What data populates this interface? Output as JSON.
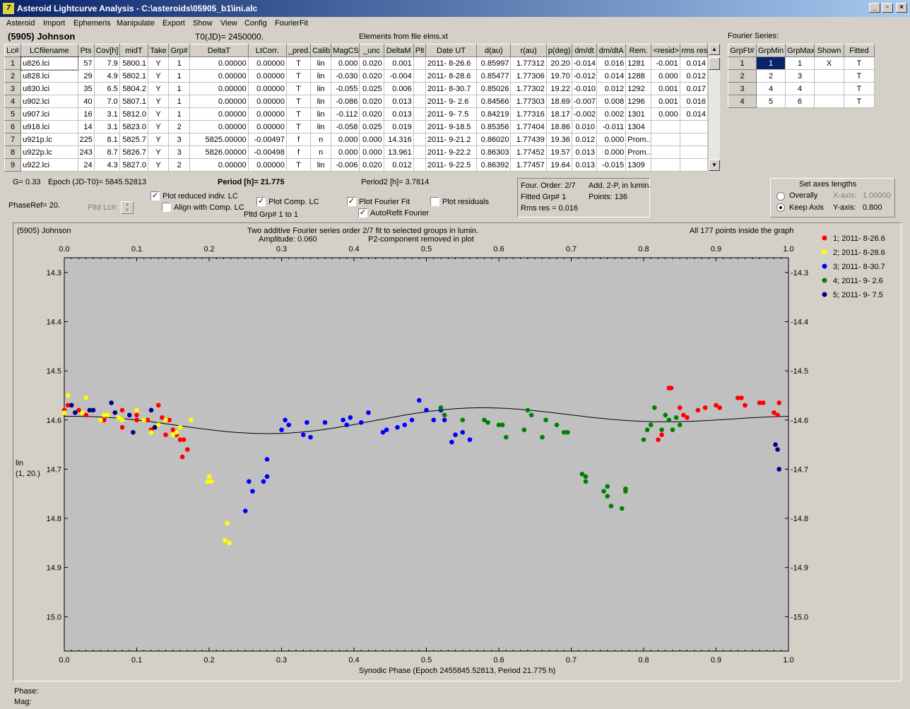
{
  "window": {
    "title": "Asteroid Lightcurve Analysis - C:\\asteroids\\05905_b1\\ini.alc",
    "controls": [
      "_",
      "▫",
      "×"
    ]
  },
  "menu": [
    "Asteroid",
    "Import",
    "Ephemeris",
    "Manipulate",
    "Export",
    "Show",
    "View",
    "Config",
    "FourierFit"
  ],
  "header": {
    "asteroid": "(5905) Johnson",
    "t0": "T0(JD)= 2450000.",
    "elements": "Elements from file elms.xt"
  },
  "lc_table": {
    "columns": [
      "Lc#",
      "LCfilename",
      "Pts",
      "Cov[h]",
      "midT",
      "Take",
      "Grp#",
      "DeltaT",
      "LtCorr.",
      "_pred.",
      "Calib.",
      "MagCS",
      "_unc",
      "DeltaM",
      "Plt",
      "Date UT",
      "d(au)",
      "r(au)",
      "p(deg)",
      "dm/dt",
      "dm/dtA",
      "Rem.",
      "<resid>",
      "rms res"
    ],
    "rows": [
      [
        "1",
        "u826.lci",
        "57",
        "7.9",
        "5800.1",
        "Y",
        "1",
        "0.00000",
        "0.00000",
        "T",
        "lin",
        "0.000",
        "0.020",
        "0.001",
        "",
        "2011- 8-26.6",
        "0.85997",
        "1.77312",
        "20.20",
        "-0.014",
        "0.016",
        "1281",
        "-0.001",
        "0.014"
      ],
      [
        "2",
        "u828.lci",
        "29",
        "4.9",
        "5802.1",
        "Y",
        "1",
        "0.00000",
        "0.00000",
        "T",
        "lin",
        "-0.030",
        "0.020",
        "-0.004",
        "",
        "2011- 8-28.6",
        "0.85477",
        "1.77306",
        "19.70",
        "-0.012",
        "0.014",
        "1288",
        "0.000",
        "0.012"
      ],
      [
        "3",
        "u830.lci",
        "35",
        "6.5",
        "5804.2",
        "Y",
        "1",
        "0.00000",
        "0.00000",
        "T",
        "lin",
        "-0.055",
        "0.025",
        "0.006",
        "",
        "2011- 8-30.7",
        "0.85026",
        "1.77302",
        "19.22",
        "-0.010",
        "0.012",
        "1292",
        "0.001",
        "0.017"
      ],
      [
        "4",
        "u902.lci",
        "40",
        "7.0",
        "5807.1",
        "Y",
        "1",
        "0.00000",
        "0.00000",
        "T",
        "lin",
        "-0.086",
        "0.020",
        "0.013",
        "",
        "2011- 9- 2.6",
        "0.84566",
        "1.77303",
        "18.69",
        "-0.007",
        "0.008",
        "1296",
        "0.001",
        "0.016"
      ],
      [
        "5",
        "u907.lci",
        "16",
        "3.1",
        "5812.0",
        "Y",
        "1",
        "0.00000",
        "0.00000",
        "T",
        "lin",
        "-0.112",
        "0.020",
        "0.013",
        "",
        "2011- 9- 7.5",
        "0.84219",
        "1.77316",
        "18.17",
        "-0.002",
        "0.002",
        "1301",
        "0.000",
        "0.014"
      ],
      [
        "6",
        "u918.lci",
        "14",
        "3.1",
        "5823.0",
        "Y",
        "2",
        "0.00000",
        "0.00000",
        "T",
        "lin",
        "-0.058",
        "0.025",
        "0.019",
        "",
        "2011- 9-18.5",
        "0.85356",
        "1.77404",
        "18.86",
        "0.010",
        "-0.011",
        "1304",
        "",
        ""
      ],
      [
        "7",
        "u921p.lc",
        "225",
        "8.1",
        "5825.7",
        "Y",
        "3",
        "5825.00000",
        "-0.00497",
        "f",
        "n",
        "0.000",
        "0.000",
        "14.316",
        "",
        "2011- 9-21.2",
        "0.86020",
        "1.77439",
        "19.36",
        "0.012",
        "0.000",
        "Prom...",
        "",
        ""
      ],
      [
        "8",
        "u922p.lc",
        "243",
        "8.7",
        "5826.7",
        "Y",
        "3",
        "5826.00000",
        "-0.00498",
        "f",
        "n",
        "0.000",
        "0.000",
        "13.961",
        "",
        "2011- 9-22.2",
        "0.86303",
        "1.77452",
        "19.57",
        "0.013",
        "0.000",
        "Prom...",
        "",
        ""
      ],
      [
        "9",
        "u922.lci",
        "24",
        "4.3",
        "5827.0",
        "Y",
        "2",
        "0.00000",
        "0.00000",
        "T",
        "lin",
        "-0.006",
        "0.020",
        "0.012",
        "",
        "2011- 9-22.5",
        "0.86392",
        "1.77457",
        "19.64",
        "0.013",
        "-0.015",
        "1309",
        "",
        ""
      ]
    ]
  },
  "fourier_series": {
    "title": "Fourier Series:",
    "columns": [
      "GrpFt#",
      "GrpMin",
      "GrpMax",
      "Shown",
      "Fitted"
    ],
    "rows": [
      [
        "1",
        "1",
        "1",
        "X",
        "T"
      ],
      [
        "2",
        "2",
        "3",
        "",
        "T"
      ],
      [
        "3",
        "4",
        "4",
        "",
        "T"
      ],
      [
        "4",
        "5",
        "6",
        "",
        "T"
      ]
    ]
  },
  "controls": {
    "g": "G= 0.33",
    "epoch": "Epoch (JD-T0)= 5845.52813",
    "period": "Period [h]= 21.775",
    "period2": "Period2 [h]= 3.7814",
    "phase_ref": "PhaseRef= 20.",
    "pltd_lc": "Pltd Lc#:",
    "plot_reduced": "Plot reduced indiv. LC",
    "align": "Align with Comp. LC",
    "plot_comp": "Plot Comp. LC",
    "pltd_grp": "Pltd Grp#  1   to   1",
    "plot_fourier": "Plot Fourier Fit",
    "autorefit": "AutoRefit Fourier",
    "plot_residuals": "Plot residuals",
    "checks": {
      "plot_reduced": "✓",
      "align": "",
      "plot_comp": "✓",
      "plot_fourier": "✓",
      "autorefit": "✓",
      "plot_residuals": ""
    }
  },
  "fit_info": {
    "order": "Four. Order:  2/7",
    "add": "Add. 2-P, in lumin.",
    "fitted": "Fitted Grp# 1",
    "points": "Points: 136",
    "rms": "Rms res     = 0.016"
  },
  "axes": {
    "title": "Set axes lengths",
    "overally": "Overally",
    "keep": "Keep Axis",
    "xaxis_label": "X-axis:",
    "xaxis_val": "1.00000",
    "yaxis_label": "Y-axis:",
    "yaxis_val": "0.800"
  },
  "chart_header": {
    "name": "(5905) Johnson",
    "line1": "Two additive Fourier series order 2/7 fit to selected groups in lumin.",
    "line2a": "Amplitude: 0.060",
    "line2b": "P2-component removed in plot",
    "points_info": "All 177 points inside the graph",
    "ylabel1": "lin",
    "ylabel2": "(1, 20.)",
    "xlabel": "Synodic Phase (Epoch 2455845.52813, Period 21.775 h)"
  },
  "status": {
    "phase": "Phase:",
    "mag": "Mag:"
  },
  "chart_data": {
    "type": "scatter",
    "xlabel": "Synodic Phase (Epoch 2455845.52813, Period 21.775 h)",
    "ylabel": "lin (1, 20.)",
    "xlim": [
      0,
      1
    ],
    "ylim": [
      15.07,
      14.27
    ],
    "y_inverted": true,
    "xticks": [
      "0.0",
      "0.1",
      "0.2",
      "0.3",
      "0.4",
      "0.5",
      "0.6",
      "0.7",
      "0.8",
      "0.9",
      "1.0"
    ],
    "yticks": [
      "14.3",
      "14.4",
      "14.5",
      "14.6",
      "14.7",
      "14.8",
      "14.9",
      "15.0"
    ],
    "legend_position": "right",
    "series": [
      {
        "name": "1; 2011- 8-26.6",
        "color": "#ff0000",
        "points": [
          [
            0.0,
            14.58
          ],
          [
            0.005,
            14.57
          ],
          [
            0.02,
            14.58
          ],
          [
            0.03,
            14.59
          ],
          [
            0.05,
            14.6
          ],
          [
            0.055,
            14.6
          ],
          [
            0.08,
            14.58
          ],
          [
            0.08,
            14.615
          ],
          [
            0.1,
            14.6
          ],
          [
            0.1,
            14.59
          ],
          [
            0.11,
            14.6
          ],
          [
            0.115,
            14.6
          ],
          [
            0.12,
            14.62
          ],
          [
            0.125,
            14.615
          ],
          [
            0.13,
            14.57
          ],
          [
            0.135,
            14.595
          ],
          [
            0.14,
            14.63
          ],
          [
            0.145,
            14.6
          ],
          [
            0.15,
            14.62
          ],
          [
            0.155,
            14.63
          ],
          [
            0.16,
            14.64
          ],
          [
            0.163,
            14.675
          ],
          [
            0.165,
            14.64
          ],
          [
            0.17,
            14.66
          ],
          [
            0.82,
            14.64
          ],
          [
            0.825,
            14.63
          ],
          [
            0.835,
            14.535
          ],
          [
            0.838,
            14.535
          ],
          [
            0.85,
            14.575
          ],
          [
            0.855,
            14.59
          ],
          [
            0.86,
            14.595
          ],
          [
            0.875,
            14.58
          ],
          [
            0.885,
            14.575
          ],
          [
            0.9,
            14.57
          ],
          [
            0.905,
            14.575
          ],
          [
            0.93,
            14.555
          ],
          [
            0.935,
            14.555
          ],
          [
            0.94,
            14.57
          ],
          [
            0.96,
            14.565
          ],
          [
            0.965,
            14.565
          ],
          [
            0.98,
            14.585
          ],
          [
            0.985,
            14.59
          ],
          [
            0.987,
            14.565
          ]
        ]
      },
      {
        "name": "2; 2011- 8-28.6",
        "color": "#ffff00",
        "points": [
          [
            0.0,
            14.585
          ],
          [
            0.005,
            14.55
          ],
          [
            0.025,
            14.585
          ],
          [
            0.03,
            14.555
          ],
          [
            0.05,
            14.6
          ],
          [
            0.055,
            14.59
          ],
          [
            0.06,
            14.59
          ],
          [
            0.075,
            14.595
          ],
          [
            0.08,
            14.6
          ],
          [
            0.1,
            14.58
          ],
          [
            0.11,
            14.6
          ],
          [
            0.12,
            14.625
          ],
          [
            0.13,
            14.61
          ],
          [
            0.14,
            14.6
          ],
          [
            0.15,
            14.63
          ],
          [
            0.155,
            14.625
          ],
          [
            0.16,
            14.615
          ],
          [
            0.175,
            14.6
          ],
          [
            0.198,
            14.725
          ],
          [
            0.2,
            14.715
          ],
          [
            0.203,
            14.725
          ],
          [
            0.222,
            14.845
          ],
          [
            0.225,
            14.81
          ],
          [
            0.228,
            14.85
          ]
        ]
      },
      {
        "name": "3; 2011- 8-30.7",
        "color": "#0000ff",
        "points": [
          [
            0.25,
            14.785
          ],
          [
            0.255,
            14.725
          ],
          [
            0.26,
            14.745
          ],
          [
            0.275,
            14.725
          ],
          [
            0.28,
            14.715
          ],
          [
            0.28,
            14.68
          ],
          [
            0.3,
            14.62
          ],
          [
            0.305,
            14.6
          ],
          [
            0.31,
            14.61
          ],
          [
            0.33,
            14.63
          ],
          [
            0.335,
            14.605
          ],
          [
            0.34,
            14.635
          ],
          [
            0.36,
            14.605
          ],
          [
            0.385,
            14.6
          ],
          [
            0.39,
            14.61
          ],
          [
            0.395,
            14.595
          ],
          [
            0.41,
            14.605
          ],
          [
            0.42,
            14.585
          ],
          [
            0.44,
            14.625
          ],
          [
            0.445,
            14.62
          ],
          [
            0.46,
            14.615
          ],
          [
            0.47,
            14.61
          ],
          [
            0.48,
            14.6
          ],
          [
            0.49,
            14.56
          ],
          [
            0.5,
            14.58
          ],
          [
            0.51,
            14.6
          ],
          [
            0.52,
            14.58
          ],
          [
            0.525,
            14.6
          ],
          [
            0.535,
            14.645
          ],
          [
            0.54,
            14.63
          ],
          [
            0.55,
            14.625
          ],
          [
            0.56,
            14.64
          ]
        ]
      },
      {
        "name": "4; 2011- 9- 2.6",
        "color": "#008000",
        "points": [
          [
            0.52,
            14.575
          ],
          [
            0.525,
            14.59
          ],
          [
            0.55,
            14.6
          ],
          [
            0.58,
            14.6
          ],
          [
            0.585,
            14.605
          ],
          [
            0.6,
            14.61
          ],
          [
            0.605,
            14.61
          ],
          [
            0.61,
            14.635
          ],
          [
            0.635,
            14.62
          ],
          [
            0.64,
            14.58
          ],
          [
            0.645,
            14.59
          ],
          [
            0.66,
            14.635
          ],
          [
            0.665,
            14.6
          ],
          [
            0.68,
            14.61
          ],
          [
            0.69,
            14.625
          ],
          [
            0.695,
            14.625
          ],
          [
            0.715,
            14.71
          ],
          [
            0.72,
            14.715
          ],
          [
            0.72,
            14.725
          ],
          [
            0.745,
            14.745
          ],
          [
            0.75,
            14.735
          ],
          [
            0.75,
            14.755
          ],
          [
            0.755,
            14.775
          ],
          [
            0.77,
            14.78
          ],
          [
            0.775,
            14.745
          ],
          [
            0.775,
            14.74
          ],
          [
            0.8,
            14.64
          ],
          [
            0.805,
            14.62
          ],
          [
            0.81,
            14.61
          ],
          [
            0.815,
            14.575
          ],
          [
            0.825,
            14.62
          ],
          [
            0.83,
            14.59
          ],
          [
            0.835,
            14.6
          ],
          [
            0.84,
            14.62
          ],
          [
            0.845,
            14.595
          ],
          [
            0.85,
            14.61
          ]
        ]
      },
      {
        "name": "5; 2011- 9- 7.5",
        "color": "#000080",
        "points": [
          [
            0.01,
            14.57
          ],
          [
            0.015,
            14.585
          ],
          [
            0.035,
            14.58
          ],
          [
            0.04,
            14.58
          ],
          [
            0.065,
            14.565
          ],
          [
            0.07,
            14.585
          ],
          [
            0.09,
            14.59
          ],
          [
            0.095,
            14.625
          ],
          [
            0.12,
            14.58
          ],
          [
            0.125,
            14.615
          ],
          [
            0.982,
            14.65
          ],
          [
            0.985,
            14.66
          ],
          [
            0.987,
            14.7
          ]
        ]
      }
    ],
    "fit_curve": {
      "color": "#000000",
      "mean": 14.6,
      "amplitude": 0.06
    }
  }
}
